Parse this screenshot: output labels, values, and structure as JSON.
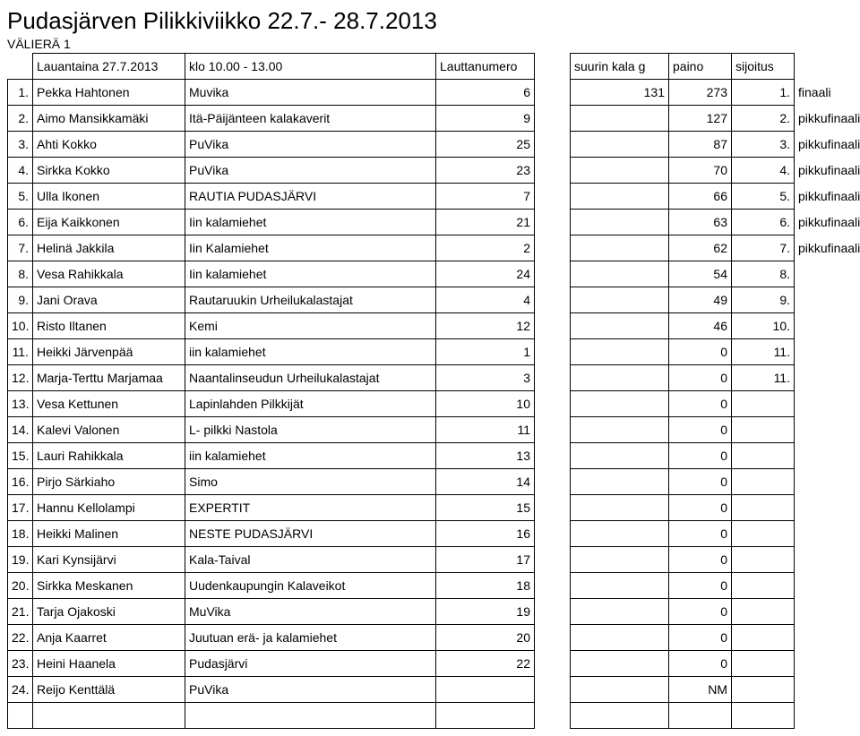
{
  "title": "Pudasjärven Pilikkiviikko 22.7.- 28.7.2013",
  "subtitle": "VÄLIERÄ 1",
  "header": {
    "date": "Lauantaina 27.7.2013",
    "time": "klo 10.00 - 13.00",
    "col_laut": "Lauttanumero",
    "col_kala": "suurin kala g",
    "col_paino": "paino",
    "col_sij": "sijoitus"
  },
  "rows": [
    {
      "n": "1.",
      "name": "Pekka Hahtonen",
      "team": "Muvika",
      "laut": "6",
      "kala": "131",
      "paino": "273",
      "sij": "1.",
      "note": "finaali"
    },
    {
      "n": "2.",
      "name": "Aimo Mansikkamäki",
      "team": "Itä-Päijänteen kalakaverit",
      "laut": "9",
      "kala": "",
      "paino": "127",
      "sij": "2.",
      "note": "pikkufinaali"
    },
    {
      "n": "3.",
      "name": "Ahti Kokko",
      "team": "PuVika",
      "laut": "25",
      "kala": "",
      "paino": "87",
      "sij": "3.",
      "note": "pikkufinaali"
    },
    {
      "n": "4.",
      "name": "Sirkka Kokko",
      "team": "PuVika",
      "laut": "23",
      "kala": "",
      "paino": "70",
      "sij": "4.",
      "note": "pikkufinaali"
    },
    {
      "n": "5.",
      "name": "Ulla Ikonen",
      "team": "RAUTIA PUDASJÄRVI",
      "laut": "7",
      "kala": "",
      "paino": "66",
      "sij": "5.",
      "note": "pikkufinaali"
    },
    {
      "n": "6.",
      "name": "Eija Kaikkonen",
      "team": "Iin kalamiehet",
      "laut": "21",
      "kala": "",
      "paino": "63",
      "sij": "6.",
      "note": "pikkufinaali"
    },
    {
      "n": "7.",
      "name": "Helinä Jakkila",
      "team": "Iin Kalamiehet",
      "laut": "2",
      "kala": "",
      "paino": "62",
      "sij": "7.",
      "note": "pikkufinaali"
    },
    {
      "n": "8.",
      "name": "Vesa Rahikkala",
      "team": "Iin kalamiehet",
      "laut": "24",
      "kala": "",
      "paino": "54",
      "sij": "8.",
      "note": ""
    },
    {
      "n": "9.",
      "name": "Jani Orava",
      "team": "Rautaruukin Urheilukalastajat",
      "laut": "4",
      "kala": "",
      "paino": "49",
      "sij": "9.",
      "note": ""
    },
    {
      "n": "10.",
      "name": "Risto Iltanen",
      "team": "Kemi",
      "laut": "12",
      "kala": "",
      "paino": "46",
      "sij": "10.",
      "note": ""
    },
    {
      "n": "11.",
      "name": "Heikki Järvenpää",
      "team": "iin kalamiehet",
      "laut": "1",
      "kala": "",
      "paino": "0",
      "sij": "11.",
      "note": ""
    },
    {
      "n": "12.",
      "name": "Marja-Terttu Marjamaa",
      "team": "Naantalinseudun Urheilukalastajat",
      "laut": "3",
      "kala": "",
      "paino": "0",
      "sij": "11.",
      "note": ""
    },
    {
      "n": "13.",
      "name": "Vesa Kettunen",
      "team": "Lapinlahden Pilkkijät",
      "laut": "10",
      "kala": "",
      "paino": "0",
      "sij": "",
      "note": ""
    },
    {
      "n": "14.",
      "name": "Kalevi Valonen",
      "team": "L- pilkki Nastola",
      "laut": "11",
      "kala": "",
      "paino": "0",
      "sij": "",
      "note": ""
    },
    {
      "n": "15.",
      "name": "Lauri Rahikkala",
      "team": "iin kalamiehet",
      "laut": "13",
      "kala": "",
      "paino": "0",
      "sij": "",
      "note": ""
    },
    {
      "n": "16.",
      "name": "Pirjo Särkiaho",
      "team": "Simo",
      "laut": "14",
      "kala": "",
      "paino": "0",
      "sij": "",
      "note": ""
    },
    {
      "n": "17.",
      "name": "Hannu Kellolampi",
      "team": "EXPERTIT",
      "laut": "15",
      "kala": "",
      "paino": "0",
      "sij": "",
      "note": ""
    },
    {
      "n": "18.",
      "name": "Heikki Malinen",
      "team": "NESTE PUDASJÄRVI",
      "laut": "16",
      "kala": "",
      "paino": "0",
      "sij": "",
      "note": ""
    },
    {
      "n": "19.",
      "name": "Kari Kynsijärvi",
      "team": "Kala-Taival",
      "laut": "17",
      "kala": "",
      "paino": "0",
      "sij": "",
      "note": ""
    },
    {
      "n": "20.",
      "name": "Sirkka Meskanen",
      "team": "Uudenkaupungin Kalaveikot",
      "laut": "18",
      "kala": "",
      "paino": "0",
      "sij": "",
      "note": ""
    },
    {
      "n": "21.",
      "name": "Tarja Ojakoski",
      "team": "MuVika",
      "laut": "19",
      "kala": "",
      "paino": "0",
      "sij": "",
      "note": ""
    },
    {
      "n": "22.",
      "name": "Anja Kaarret",
      "team": "Juutuan erä- ja kalamiehet",
      "laut": "20",
      "kala": "",
      "paino": "0",
      "sij": "",
      "note": ""
    },
    {
      "n": "23.",
      "name": "Heini Haanela",
      "team": "Pudasjärvi",
      "laut": "22",
      "kala": "",
      "paino": "0",
      "sij": "",
      "note": ""
    },
    {
      "n": "24.",
      "name": "Reijo Kenttälä",
      "team": "PuVika",
      "laut": "",
      "kala": "",
      "paino": "NM",
      "sij": "",
      "note": ""
    }
  ]
}
